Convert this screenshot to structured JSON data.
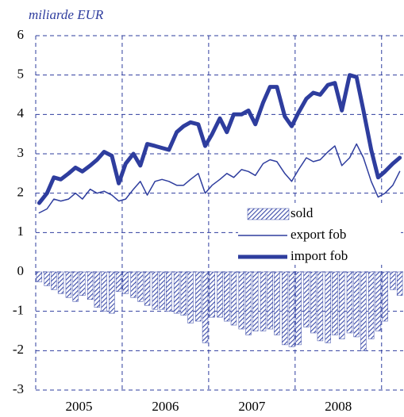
{
  "chart_data": {
    "type": "combo",
    "y_axis_label": "miliarde EUR",
    "x": [
      2005.04,
      2005.13,
      2005.21,
      2005.29,
      2005.38,
      2005.46,
      2005.54,
      2005.63,
      2005.71,
      2005.79,
      2005.88,
      2005.96,
      2006.04,
      2006.13,
      2006.21,
      2006.29,
      2006.38,
      2006.46,
      2006.54,
      2006.63,
      2006.71,
      2006.79,
      2006.88,
      2006.96,
      2007.04,
      2007.13,
      2007.21,
      2007.29,
      2007.38,
      2007.46,
      2007.54,
      2007.63,
      2007.71,
      2007.79,
      2007.88,
      2007.96,
      2008.04,
      2008.13,
      2008.21,
      2008.29,
      2008.38,
      2008.46,
      2008.54,
      2008.63,
      2008.71,
      2008.79,
      2008.88,
      2008.96,
      2009.04,
      2009.13,
      2009.21
    ],
    "series": [
      {
        "name": "sold",
        "kind": "bar",
        "color": "#3a4aa8",
        "values": [
          -0.25,
          -0.35,
          -0.45,
          -0.55,
          -0.65,
          -0.75,
          -0.6,
          -0.7,
          -0.9,
          -1.0,
          -1.05,
          -0.5,
          -0.55,
          -0.65,
          -0.75,
          -0.85,
          -0.95,
          -0.95,
          -1.0,
          -1.05,
          -1.1,
          -1.3,
          -1.25,
          -1.8,
          -1.15,
          -1.15,
          -1.25,
          -1.35,
          -1.45,
          -1.6,
          -1.5,
          -1.5,
          -1.45,
          -1.6,
          -1.85,
          -1.9,
          -1.85,
          -1.4,
          -1.55,
          -1.75,
          -1.8,
          -1.6,
          -1.7,
          -1.55,
          -1.65,
          -2.0,
          -1.7,
          -1.5,
          -1.25,
          -0.45,
          -0.6
        ]
      },
      {
        "name": "export fob",
        "kind": "line",
        "width": 1.5,
        "color": "#2e3d9e",
        "values": [
          1.5,
          1.6,
          1.85,
          1.8,
          1.85,
          2.0,
          1.85,
          2.1,
          2.0,
          2.05,
          1.95,
          1.8,
          1.85,
          2.1,
          2.3,
          1.95,
          2.3,
          2.35,
          2.3,
          2.2,
          2.2,
          2.35,
          2.5,
          2.0,
          2.2,
          2.35,
          2.5,
          2.4,
          2.6,
          2.55,
          2.45,
          2.75,
          2.85,
          2.8,
          2.5,
          2.3,
          2.6,
          2.9,
          2.8,
          2.85,
          3.05,
          3.2,
          2.7,
          2.9,
          3.25,
          2.9,
          2.3,
          1.9,
          2.0,
          2.2,
          2.55
        ]
      },
      {
        "name": "import fob",
        "kind": "line",
        "width": 5,
        "color": "#2e3d9e",
        "values": [
          1.75,
          2.0,
          2.4,
          2.35,
          2.5,
          2.65,
          2.55,
          2.7,
          2.85,
          3.05,
          2.95,
          2.25,
          2.75,
          3.0,
          2.7,
          3.25,
          3.2,
          3.15,
          3.1,
          3.55,
          3.7,
          3.8,
          3.75,
          3.2,
          3.5,
          3.9,
          3.55,
          4.0,
          4.0,
          4.1,
          3.75,
          4.3,
          4.7,
          4.7,
          3.95,
          3.7,
          4.05,
          4.4,
          4.55,
          4.5,
          4.75,
          4.8,
          4.1,
          5.0,
          4.95,
          4.1,
          3.1,
          2.4,
          2.55,
          2.75,
          2.9
        ]
      }
    ],
    "xlim": [
      2005,
      2009.25
    ],
    "xticks": [
      {
        "value": 2005.5,
        "label": "2005"
      },
      {
        "value": 2006.5,
        "label": "2006"
      },
      {
        "value": 2007.5,
        "label": "2007"
      },
      {
        "value": 2008.5,
        "label": "2008"
      }
    ],
    "xgrid": [
      2005,
      2006,
      2007,
      2008,
      2009
    ],
    "ylim": [
      -3,
      6
    ],
    "yticks": [
      -3,
      -2,
      -1,
      0,
      1,
      2,
      3,
      4,
      5,
      6
    ],
    "grid": true
  }
}
